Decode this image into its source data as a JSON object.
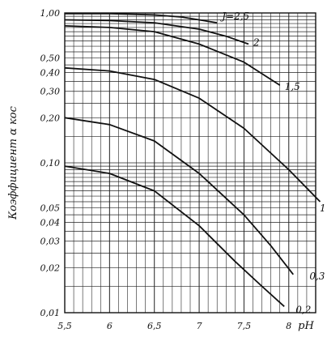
{
  "chart_data": {
    "type": "line",
    "xlabel": "pH",
    "ylabel": "Коэффициент α кос",
    "xlim": [
      5.5,
      8.3
    ],
    "ylim": [
      0.01,
      1.0
    ],
    "yscale": "log",
    "grid": true,
    "x_ticks": [
      "5,5",
      "6",
      "6,5",
      "7",
      "7,5",
      "8"
    ],
    "x_tick_values": [
      5.5,
      6,
      6.5,
      7,
      7.5,
      8
    ],
    "y_ticks": [
      "1,00",
      "0,50",
      "0,40",
      "0,30",
      "0,20",
      "0,10",
      "0,05",
      "0,04",
      "0,03",
      "0,02",
      "0,01"
    ],
    "y_tick_values": [
      1.0,
      0.5,
      0.4,
      0.3,
      0.2,
      0.1,
      0.05,
      0.04,
      0.03,
      0.02,
      0.01
    ],
    "series": [
      {
        "name": "J=2,5",
        "x": [
          5.5,
          6.0,
          6.5,
          6.8,
          7.0,
          7.2
        ],
        "y": [
          0.99,
          0.99,
          0.97,
          0.94,
          0.9,
          0.86
        ]
      },
      {
        "name": "2",
        "x": [
          5.5,
          6.0,
          6.5,
          7.0,
          7.3,
          7.55
        ],
        "y": [
          0.9,
          0.89,
          0.86,
          0.78,
          0.7,
          0.62
        ]
      },
      {
        "name": "1,5",
        "x": [
          5.5,
          6.0,
          6.5,
          7.0,
          7.5,
          7.9
        ],
        "y": [
          0.82,
          0.8,
          0.75,
          0.62,
          0.47,
          0.33
        ]
      },
      {
        "name": "1",
        "x": [
          5.5,
          6.0,
          6.5,
          7.0,
          7.5,
          8.0,
          8.35
        ],
        "y": [
          0.43,
          0.41,
          0.36,
          0.27,
          0.17,
          0.09,
          0.055
        ]
      },
      {
        "name": "0,3",
        "x": [
          5.5,
          6.0,
          6.5,
          7.0,
          7.5,
          7.8,
          8.05
        ],
        "y": [
          0.2,
          0.18,
          0.14,
          0.085,
          0.045,
          0.028,
          0.018
        ]
      },
      {
        "name": "0,2",
        "x": [
          5.5,
          6.0,
          6.5,
          7.0,
          7.4,
          7.7,
          7.95
        ],
        "y": [
          0.095,
          0.085,
          0.065,
          0.038,
          0.022,
          0.015,
          0.011
        ]
      }
    ],
    "labels": [
      "J=2,5",
      "2",
      "1,5",
      "1",
      "0,3",
      "0,2"
    ]
  }
}
